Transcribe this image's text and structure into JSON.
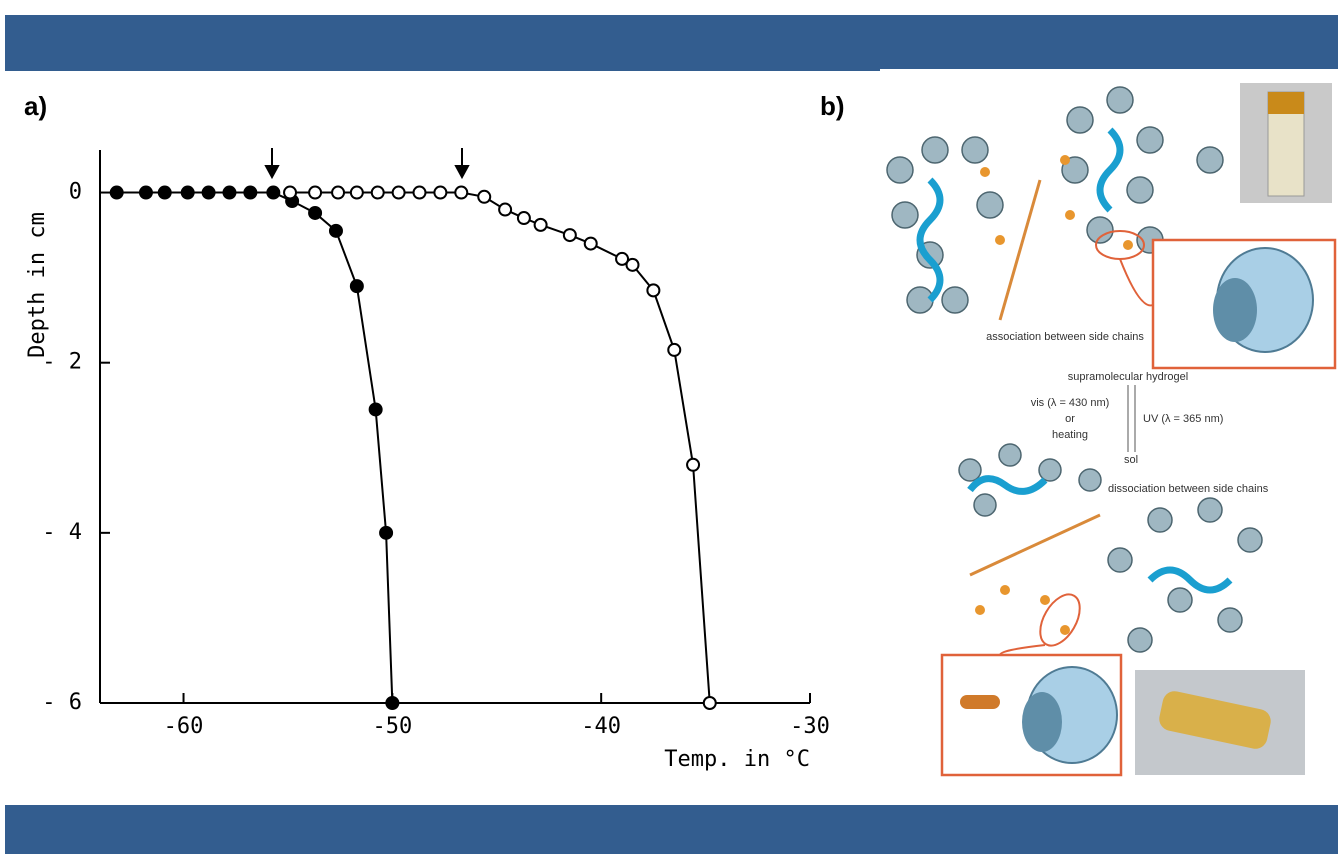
{
  "panels": {
    "a": "a)",
    "b": "b)"
  },
  "chart_data": {
    "type": "scatter-line",
    "xlabel": "Temp. in °C",
    "ylabel": "Depth in cm",
    "xlim": [
      -64,
      -30
    ],
    "ylim": [
      -6,
      0.5
    ],
    "xticks": [
      -60,
      -50,
      -40,
      -30
    ],
    "yticks": [
      {
        "value": 0,
        "label": "0"
      },
      {
        "value": -2,
        "label": "- 2"
      },
      {
        "value": -4,
        "label": "- 4"
      },
      {
        "value": -6,
        "label": "- 6"
      }
    ],
    "series": [
      {
        "marker": "filled",
        "color": "#000000",
        "x": [
          -63.2,
          -61.8,
          -60.9,
          -59.8,
          -58.8,
          -57.8,
          -56.8,
          -55.7,
          -54.8,
          -53.7,
          -52.7,
          -51.7,
          -50.8,
          -50.3,
          -50.0
        ],
        "values": [
          0,
          0,
          0,
          0,
          0,
          0,
          0,
          0,
          -0.1,
          -0.24,
          -0.45,
          -1.1,
          -2.55,
          -4.0,
          -6
        ]
      },
      {
        "marker": "open",
        "color": "#000000",
        "x": [
          -54.9,
          -53.7,
          -52.6,
          -51.7,
          -50.7,
          -49.7,
          -48.7,
          -47.7,
          -46.7,
          -45.6,
          -44.6,
          -43.7,
          -42.9,
          -41.5,
          -40.5,
          -39.0,
          -38.5,
          -37.5,
          -36.5,
          -35.6,
          -34.8
        ],
        "values": [
          0,
          0,
          0,
          0,
          0,
          0,
          0,
          0,
          0,
          -0.05,
          -0.2,
          -0.3,
          -0.38,
          -0.5,
          -0.6,
          -0.78,
          -0.85,
          -1.15,
          -1.85,
          -3.2,
          -6
        ]
      }
    ]
  },
  "diagram": {
    "association": "association between side chains",
    "hydrogel": "supramolecular hydrogel",
    "vis": "vis (λ = 430 nm)",
    "or": "or",
    "heating": "heating",
    "uv": "UV (λ = 365 nm)",
    "sol": "sol",
    "dissociation": "dissociation between side chains"
  }
}
